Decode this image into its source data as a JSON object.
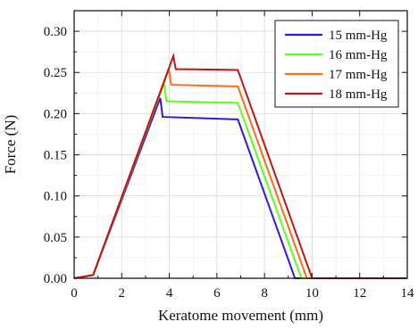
{
  "chart_data": {
    "type": "line",
    "xlabel": "Keratome movement (mm)",
    "ylabel": "Force (N)",
    "xlim": [
      0,
      14
    ],
    "ylim": [
      0,
      0.325
    ],
    "x_ticks": [
      "0",
      "2",
      "4",
      "6",
      "8",
      "10",
      "12",
      "14"
    ],
    "y_ticks": [
      "0.00",
      "0.05",
      "0.10",
      "0.15",
      "0.20",
      "0.25",
      "0.30"
    ],
    "grid": true,
    "legend_position": "top-right",
    "series": [
      {
        "name": "15 mm-Hg",
        "color": "#2b1bdc",
        "x": [
          0,
          0.8,
          3.62,
          3.72,
          6.88,
          9.28,
          14
        ],
        "y": [
          0,
          0.004,
          0.219,
          0.196,
          0.193,
          0,
          0
        ]
      },
      {
        "name": "16 mm-Hg",
        "color": "#5cff1a",
        "x": [
          0,
          0.8,
          3.78,
          3.88,
          6.88,
          9.55,
          14
        ],
        "y": [
          0,
          0.004,
          0.237,
          0.215,
          0.213,
          0,
          0
        ]
      },
      {
        "name": "17 mm-Hg",
        "color": "#ff6a12",
        "x": [
          0,
          0.8,
          3.98,
          4.08,
          6.88,
          9.78,
          14
        ],
        "y": [
          0,
          0.004,
          0.254,
          0.235,
          0.233,
          0,
          0
        ]
      },
      {
        "name": "18 mm-Hg",
        "color": "#c11414",
        "x": [
          0,
          0.8,
          4.17,
          4.27,
          6.88,
          10.0,
          14
        ],
        "y": [
          0,
          0.004,
          0.27,
          0.254,
          0.253,
          0,
          0
        ]
      }
    ]
  }
}
